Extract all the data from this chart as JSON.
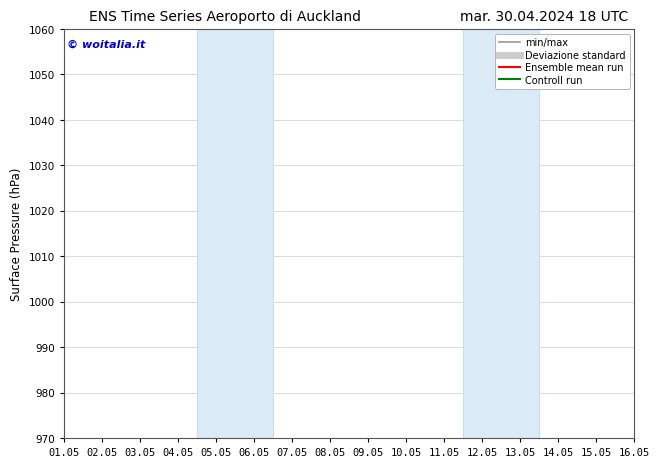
{
  "title_left": "ENS Time Series Aeroporto di Auckland",
  "title_right": "mar. 30.04.2024 18 UTC",
  "ylabel": "Surface Pressure (hPa)",
  "ylim": [
    970,
    1060
  ],
  "yticks": [
    970,
    980,
    990,
    1000,
    1010,
    1020,
    1030,
    1040,
    1050,
    1060
  ],
  "xlim_start": 0,
  "xlim_end": 15,
  "xtick_labels": [
    "01.05",
    "02.05",
    "03.05",
    "04.05",
    "05.05",
    "06.05",
    "07.05",
    "08.05",
    "09.05",
    "10.05",
    "11.05",
    "12.05",
    "13.05",
    "14.05",
    "15.05",
    "16.05"
  ],
  "shaded_bands": [
    {
      "x_start": 3.5,
      "x_end": 5.5
    },
    {
      "x_start": 10.5,
      "x_end": 12.5
    }
  ],
  "shade_color": "#daeaf7",
  "shade_edge_color": "#b8d4ea",
  "watermark_text": "© woitalia.it",
  "watermark_color": "#0000cc",
  "legend_entries": [
    {
      "label": "min/max",
      "color": "#999999",
      "lw": 1.2,
      "style": "solid"
    },
    {
      "label": "Deviazione standard",
      "color": "#cccccc",
      "lw": 5,
      "style": "solid"
    },
    {
      "label": "Ensemble mean run",
      "color": "#ff0000",
      "lw": 1.5,
      "style": "solid"
    },
    {
      "label": "Controll run",
      "color": "#008000",
      "lw": 1.5,
      "style": "solid"
    }
  ],
  "bg_color": "#ffffff",
  "grid_color": "#cccccc",
  "title_fontsize": 10,
  "tick_fontsize": 7.5,
  "ylabel_fontsize": 8.5
}
